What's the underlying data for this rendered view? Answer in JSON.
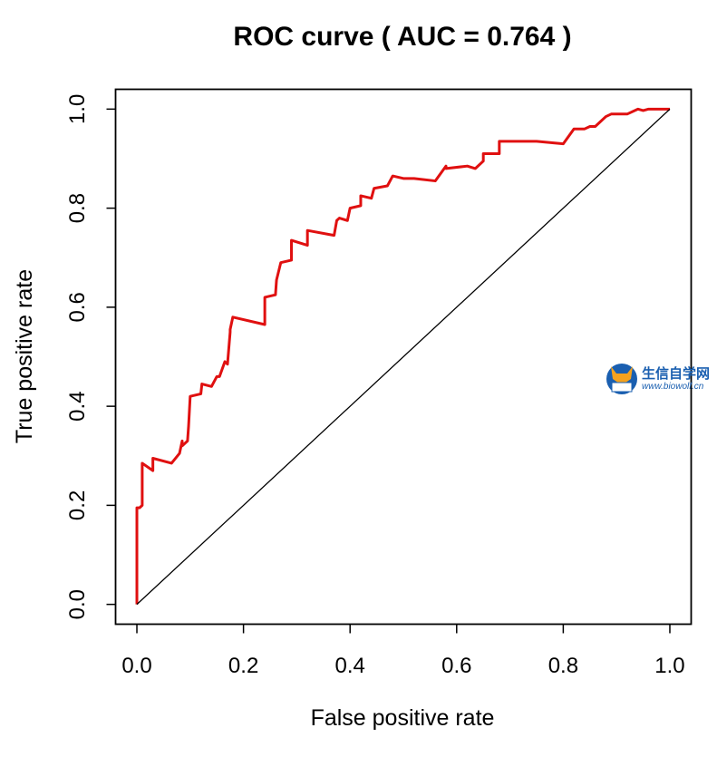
{
  "chart_data": {
    "type": "line",
    "title": "ROC curve ( AUC =  0.764 )",
    "xlabel": "False positive rate",
    "ylabel": "True positive rate",
    "xlim": [
      -0.04,
      1.04
    ],
    "ylim": [
      -0.04,
      1.04
    ],
    "x_ticks": [
      0.0,
      0.2,
      0.4,
      0.6,
      0.8,
      1.0
    ],
    "y_ticks": [
      0.0,
      0.2,
      0.4,
      0.6,
      0.8,
      1.0
    ],
    "x_tick_labels": [
      "0.0",
      "0.2",
      "0.4",
      "0.6",
      "0.8",
      "1.0"
    ],
    "y_tick_labels": [
      "0.0",
      "0.2",
      "0.4",
      "0.6",
      "0.8",
      "1.0"
    ],
    "grid": false,
    "series": [
      {
        "color": "#e01010",
        "x": [
          0.0,
          0.0,
          0.005,
          0.01,
          0.01,
          0.03,
          0.03,
          0.065,
          0.08,
          0.085,
          0.085,
          0.095,
          0.097,
          0.1,
          0.12,
          0.122,
          0.14,
          0.15,
          0.155,
          0.165,
          0.17,
          0.175,
          0.175,
          0.18,
          0.24,
          0.24,
          0.26,
          0.262,
          0.27,
          0.29,
          0.29,
          0.32,
          0.32,
          0.37,
          0.375,
          0.38,
          0.395,
          0.4,
          0.42,
          0.42,
          0.44,
          0.445,
          0.47,
          0.48,
          0.5,
          0.52,
          0.56,
          0.58,
          0.58,
          0.62,
          0.635,
          0.65,
          0.65,
          0.68,
          0.68,
          0.75,
          0.8,
          0.82,
          0.84,
          0.85,
          0.86,
          0.88,
          0.89,
          0.92,
          0.94,
          0.95,
          0.96,
          0.98,
          1.0
        ],
        "y": [
          0.0,
          0.195,
          0.195,
          0.2,
          0.285,
          0.27,
          0.295,
          0.285,
          0.305,
          0.33,
          0.32,
          0.33,
          0.36,
          0.42,
          0.425,
          0.445,
          0.44,
          0.46,
          0.46,
          0.49,
          0.485,
          0.55,
          0.555,
          0.58,
          0.565,
          0.62,
          0.625,
          0.655,
          0.69,
          0.695,
          0.735,
          0.725,
          0.755,
          0.745,
          0.775,
          0.78,
          0.775,
          0.8,
          0.805,
          0.825,
          0.82,
          0.84,
          0.845,
          0.865,
          0.86,
          0.86,
          0.855,
          0.885,
          0.88,
          0.885,
          0.88,
          0.895,
          0.91,
          0.91,
          0.935,
          0.935,
          0.93,
          0.96,
          0.96,
          0.965,
          0.965,
          0.985,
          0.99,
          0.99,
          1.0,
          0.997,
          1.0,
          1.0,
          1.0
        ]
      },
      {
        "color": "#000000",
        "x": [
          0.0,
          1.0
        ],
        "y": [
          0.0,
          1.0
        ]
      }
    ]
  },
  "watermark": {
    "text_cn": "生信自学网",
    "text_en": "www.biowolf.cn"
  }
}
